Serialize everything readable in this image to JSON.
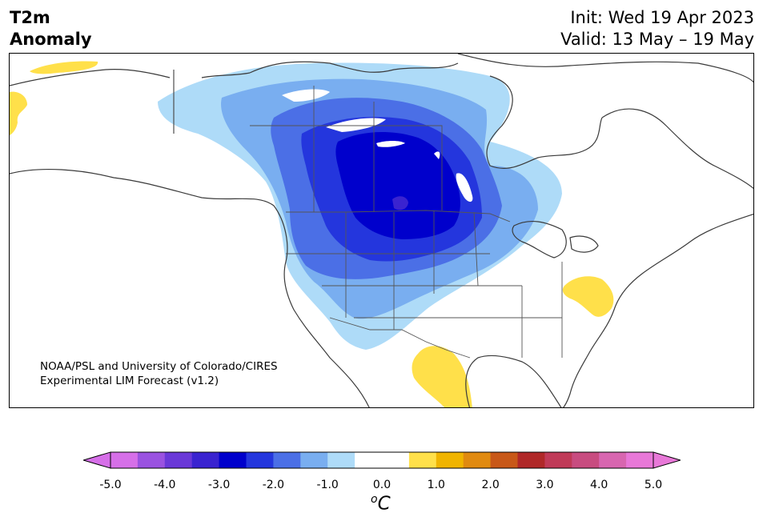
{
  "title": {
    "left_line1": "T2m",
    "left_line2": "Anomaly",
    "right_line1": "Init: Wed 19 Apr 2023",
    "right_line2": "Valid: 13 May – 19 May"
  },
  "credit": {
    "line1": "NOAA/PSL and University of Colorado/CIRES",
    "line2": "Experimental LIM Forecast (v1.2)"
  },
  "colorbar": {
    "units_main": "C",
    "units_sup": "o",
    "ticks": [
      "-5.0",
      "-4.0",
      "-3.0",
      "-2.0",
      "-1.0",
      "0.0",
      "1.0",
      "2.0",
      "3.0",
      "4.0",
      "5.0"
    ],
    "colors": [
      "#d66fe8",
      "#9a52e0",
      "#6a38d8",
      "#3a23d0",
      "#0000cc",
      "#2436dd",
      "#4b6fe6",
      "#79aef0",
      "#aedbf8",
      "#ffffff",
      "#ffffff",
      "#ffe04a",
      "#f0b400",
      "#e08a10",
      "#c85818",
      "#b02828",
      "#c03a58",
      "#c84c80",
      "#d866b0",
      "#e878d8"
    ],
    "under_color": "#d66fe8",
    "over_color": "#e878d8"
  },
  "map": {
    "region": "North America",
    "anomaly_colors": {
      "light_blue": "#aedbf8",
      "sky_blue": "#79aef0",
      "medium_blue": "#4b6fe6",
      "blue": "#2436dd",
      "dark_blue": "#0000cc",
      "deep_blue": "#3a23d0",
      "yellow": "#ffe04a"
    }
  }
}
